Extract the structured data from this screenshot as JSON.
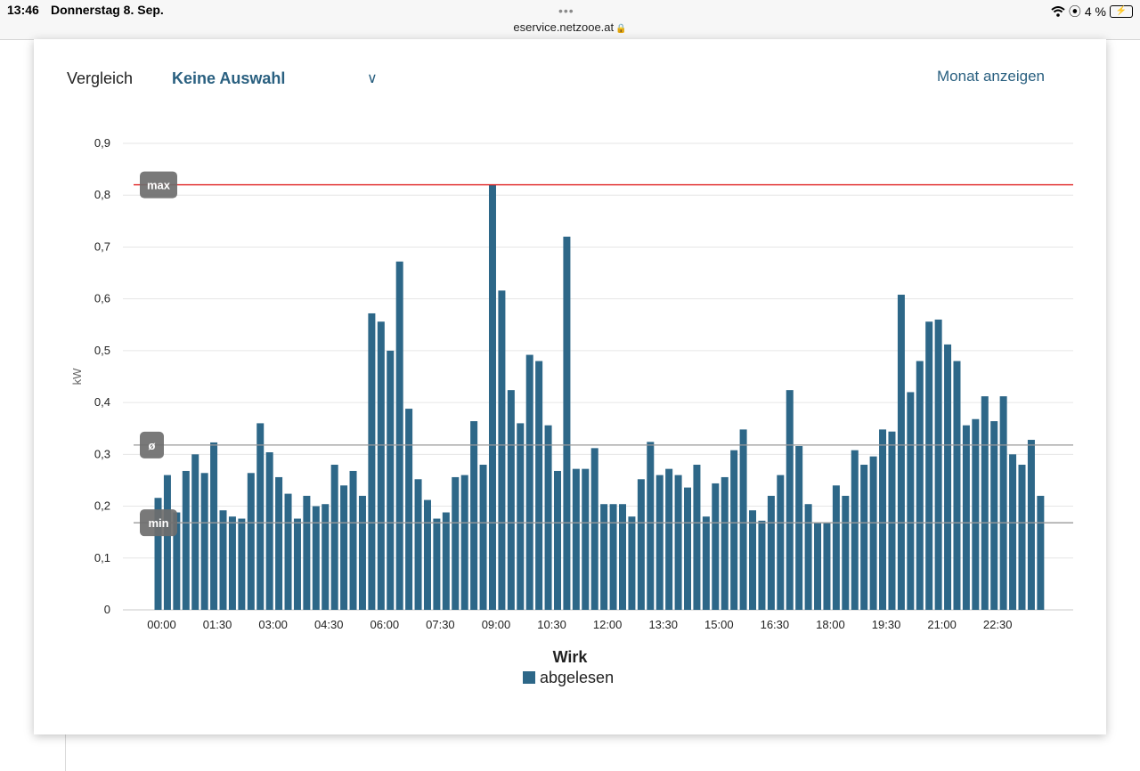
{
  "status_bar": {
    "time": "13:46",
    "date": "Donnerstag 8. Sep.",
    "url": "eservice.netzooe.at",
    "battery": "4 %",
    "wifi_icon": "wifi-icon",
    "lock_icon": "lock-icon"
  },
  "toolbar": {
    "compare_label": "Vergleich",
    "compare_value": "Keine Auswahl",
    "month_link": "Monat anzeigen"
  },
  "chart_data": {
    "type": "bar",
    "title": "Wirk",
    "ylabel": "kW",
    "ylim": [
      0,
      0.9
    ],
    "yticks": [
      "0",
      "0,1",
      "0,2",
      "0,3",
      "0,4",
      "0,5",
      "0,6",
      "0,7",
      "0,8",
      "0,9"
    ],
    "xtick_labels": [
      "00:00",
      "01:30",
      "03:00",
      "04:30",
      "06:00",
      "07:30",
      "09:00",
      "10:30",
      "12:00",
      "13:30",
      "15:00",
      "16:30",
      "18:00",
      "19:30",
      "21:00",
      "22:30"
    ],
    "interval_minutes": 15,
    "series": [
      {
        "name": "abgelesen",
        "color": "#2d6788",
        "values": [
          0.216,
          0.26,
          0.188,
          0.268,
          0.3,
          0.264,
          0.323,
          0.192,
          0.18,
          0.176,
          0.264,
          0.36,
          0.304,
          0.256,
          0.224,
          0.176,
          0.22,
          0.2,
          0.204,
          0.28,
          0.24,
          0.268,
          0.22,
          0.572,
          0.556,
          0.5,
          0.672,
          0.388,
          0.252,
          0.212,
          0.176,
          0.188,
          0.256,
          0.26,
          0.364,
          0.28,
          0.82,
          0.616,
          0.424,
          0.36,
          0.492,
          0.48,
          0.356,
          0.268,
          0.72,
          0.272,
          0.272,
          0.312,
          0.204,
          0.204,
          0.204,
          0.18,
          0.252,
          0.324,
          0.26,
          0.272,
          0.26,
          0.236,
          0.28,
          0.18,
          0.244,
          0.256,
          0.308,
          0.348,
          0.192,
          0.172,
          0.22,
          0.26,
          0.424,
          0.316,
          0.204,
          0.168,
          0.168,
          0.24,
          0.22,
          0.308,
          0.28,
          0.296,
          0.348,
          0.344,
          0.608,
          0.42,
          0.48,
          0.556,
          0.56,
          0.512,
          0.48,
          0.356,
          0.368,
          0.412,
          0.364,
          0.412,
          0.3,
          0.28,
          0.328,
          0.22
        ]
      }
    ],
    "reference_lines": [
      {
        "label": "max",
        "value": 0.82,
        "color": "#e02020"
      },
      {
        "label": "ø",
        "value": 0.318,
        "color": "#9a9a9a"
      },
      {
        "label": "min",
        "value": 0.168,
        "color": "#9a9a9a"
      }
    ],
    "legend": "bottom",
    "grid": true
  }
}
